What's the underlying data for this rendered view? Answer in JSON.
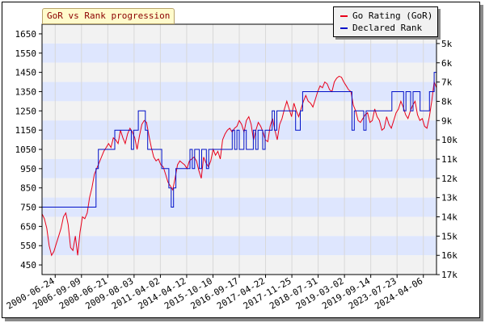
{
  "header": {
    "title": "GoR vs Rank progression"
  },
  "colors": {
    "rating": "#e8001a",
    "rank": "#0010c8",
    "band_light": "#f2f2f2",
    "band_blue": "#dee6fe",
    "title_bg": "#fffbcc",
    "title_text": "#8b0000"
  },
  "chart_data": {
    "type": "line",
    "title": "GoR vs Rank progression",
    "grid": true,
    "legend_placement": "top-right",
    "x_tick_labels": [
      "2000-06-24",
      "2006-09-09",
      "2008-06-21",
      "2009-08-03",
      "2011-04-02",
      "2014-04-12",
      "2015-10-10",
      "2016-09-17",
      "2017-04-22",
      "2017-11-25",
      "2018-07-31",
      "2019-03-02",
      "2019-09-14",
      "2023-07-23",
      "2024-04-06"
    ],
    "y_left": {
      "label": "",
      "ticks": [
        1650,
        1550,
        1450,
        1350,
        1250,
        1150,
        1050,
        950,
        850,
        750,
        650,
        550,
        450
      ],
      "ylim": [
        400,
        1700
      ]
    },
    "y_right": {
      "label": "",
      "ticks": [
        "5k",
        "6k",
        "7k",
        "8k",
        "9k",
        "10k",
        "11k",
        "12k",
        "13k",
        "14k",
        "15k",
        "16k",
        "17k"
      ]
    },
    "series": [
      {
        "name": "Go Rating (GoR)",
        "color": "#e8001a",
        "values": [
          715,
          690,
          640,
          550,
          500,
          520,
          560,
          600,
          640,
          700,
          720,
          660,
          540,
          525,
          600,
          500,
          620,
          700,
          690,
          720,
          800,
          850,
          920,
          950,
          980,
          1010,
          1040,
          1060,
          1080,
          1060,
          1110,
          1100,
          1080,
          1150,
          1110,
          1080,
          1130,
          1160,
          1140,
          1110,
          1050,
          1120,
          1180,
          1200,
          1190,
          1120,
          1060,
          1010,
          990,
          1000,
          970,
          960,
          920,
          880,
          860,
          840,
          900,
          970,
          990,
          980,
          970,
          950,
          990,
          1000,
          1010,
          990,
          940,
          900,
          1010,
          980,
          960,
          990,
          1050,
          1020,
          1040,
          1000,
          1100,
          1130,
          1150,
          1160,
          1140,
          1160,
          1170,
          1200,
          1180,
          1140,
          1200,
          1220,
          1180,
          1100,
          1150,
          1190,
          1170,
          1140,
          1100,
          1090,
          1170,
          1210,
          1150,
          1100,
          1180,
          1210,
          1260,
          1300,
          1260,
          1220,
          1290,
          1250,
          1220,
          1260,
          1300,
          1330,
          1300,
          1290,
          1270,
          1310,
          1350,
          1380,
          1370,
          1400,
          1390,
          1360,
          1350,
          1400,
          1420,
          1430,
          1425,
          1400,
          1380,
          1360,
          1350,
          1280,
          1250,
          1200,
          1190,
          1210,
          1230,
          1240,
          1190,
          1200,
          1260,
          1220,
          1200,
          1150,
          1160,
          1220,
          1180,
          1160,
          1200,
          1240,
          1260,
          1300,
          1270,
          1230,
          1210,
          1250,
          1280,
          1300,
          1230,
          1200,
          1210,
          1170,
          1160,
          1220,
          1300,
          1400,
          1370
        ]
      },
      {
        "name": "Declared Rank",
        "color": "#0010c8",
        "values": [
          14000,
          14000,
          14000,
          14000,
          14000,
          14000,
          14000,
          14000,
          14000,
          14000,
          14000,
          14000,
          14000,
          14000,
          14000,
          14000,
          14000,
          14000,
          14000,
          14000,
          14000,
          14000,
          14000,
          12000,
          11000,
          11000,
          11000,
          11000,
          11000,
          11000,
          11000,
          10000,
          10000,
          10000,
          10000,
          10000,
          10000,
          10000,
          11000,
          10000,
          10000,
          9000,
          9000,
          9000,
          10000,
          11000,
          11000,
          11000,
          11000,
          11000,
          11000,
          12000,
          12000,
          12000,
          13000,
          14000,
          13000,
          12000,
          12000,
          12000,
          12000,
          12000,
          12000,
          11000,
          12000,
          11000,
          11000,
          12000,
          11000,
          11000,
          12000,
          11000,
          11000,
          11000,
          11000,
          11000,
          11000,
          11000,
          11000,
          11000,
          11000,
          10000,
          11000,
          10000,
          11000,
          11000,
          10000,
          11000,
          11000,
          11000,
          10000,
          11000,
          10000,
          10000,
          11000,
          10000,
          10000,
          10000,
          9000,
          10000,
          9000,
          9000,
          9000,
          9000,
          9000,
          9000,
          9000,
          9000,
          10000,
          10000,
          9000,
          8000,
          8000,
          8000,
          8000,
          8000,
          8000,
          8000,
          8000,
          8000,
          8000,
          8000,
          8000,
          8000,
          8000,
          8000,
          8000,
          8000,
          8000,
          8000,
          8000,
          8000,
          10000,
          9000,
          9000,
          9000,
          9000,
          10000,
          9000,
          9000,
          9000,
          9000,
          9000,
          9000,
          9000,
          9000,
          9000,
          9000,
          9000,
          8000,
          8000,
          8000,
          8000,
          8000,
          9000,
          8000,
          8000,
          9000,
          8000,
          8000,
          8000,
          9000,
          9000,
          9000,
          9000,
          8000,
          8000,
          7000,
          7000
        ]
      }
    ]
  }
}
